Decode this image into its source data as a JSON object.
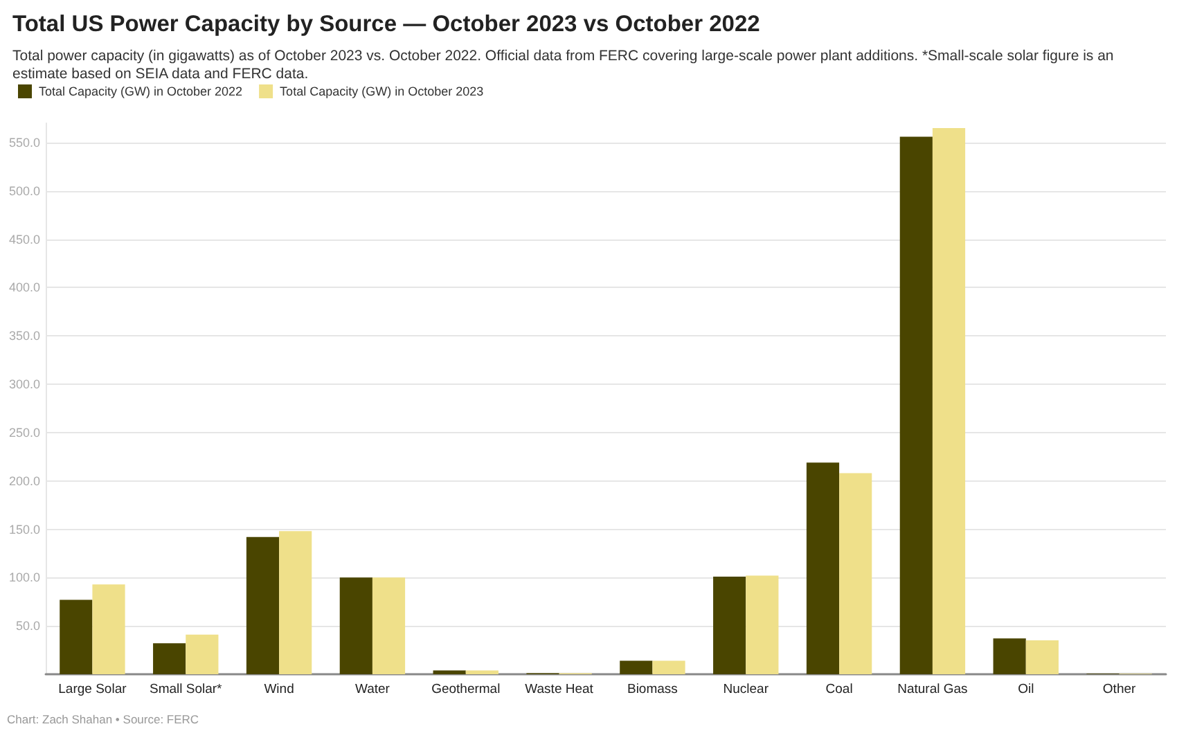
{
  "chart_data": {
    "type": "bar",
    "title": "Total US Power Capacity by Source — October 2023 vs October 2022",
    "subtitle": "Total power capacity (in gigawatts) as of October 2023 vs. October 2022. Official data from FERC covering large-scale power plant additions. *Small-scale solar figure is an estimate based on SEIA data and FERC data.",
    "annotations": [
      "Chart: Zach Shahan • Source: FERC"
    ],
    "categories": [
      "Large Solar",
      "Small Solar*",
      "Wind",
      "Water",
      "Geothermal",
      "Waste Heat",
      "Biomass",
      "Nuclear",
      "Coal",
      "Natural Gas",
      "Oil",
      "Other"
    ],
    "series": [
      {
        "name": "Total Capacity (GW) in October 2022",
        "color": "#4a4500",
        "values": [
          77,
          32,
          142,
          100,
          4,
          1,
          14,
          101,
          219,
          556,
          37,
          0.5
        ]
      },
      {
        "name": "Total Capacity (GW) in October 2023",
        "color": "#efe08a",
        "values": [
          93,
          41,
          148,
          100,
          4,
          1,
          14,
          102,
          208,
          565,
          35,
          0.5
        ]
      }
    ],
    "ylim": [
      0,
      570
    ],
    "yticks": [
      {
        "value": 50,
        "label": "50.0"
      },
      {
        "value": 100,
        "label": "100.0"
      },
      {
        "value": 150,
        "label": "150.0"
      },
      {
        "value": 200,
        "label": "200.0"
      },
      {
        "value": 250,
        "label": "250.0"
      },
      {
        "value": 300,
        "label": "300.0"
      },
      {
        "value": 350,
        "label": "350.0"
      },
      {
        "value": 400,
        "label": "400.0"
      },
      {
        "value": 450,
        "label": "450.0"
      },
      {
        "value": 500,
        "label": "500.0"
      },
      {
        "value": 550,
        "label": "550.0"
      }
    ],
    "grid": "y",
    "legend": "top left"
  }
}
